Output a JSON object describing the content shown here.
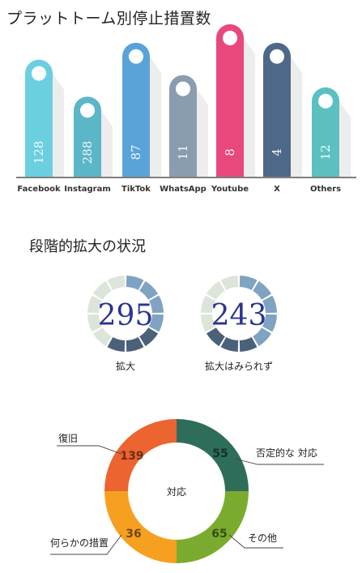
{
  "titles": {
    "chart1": "プラットトーム別停止措置数",
    "chart2": "段階的拡大の状況"
  },
  "colors": {
    "axis": "#555555",
    "bars": [
      "#6ccfe0",
      "#5bb6c8",
      "#5aa3d9",
      "#8a9db0",
      "#e8487c",
      "#4e6888",
      "#5cc0c0"
    ],
    "gauge_light": "#dde5da",
    "gauge_mid": "#7fa3c2",
    "gauge_dark": "#4b6079",
    "gauge_text": "#2a3590",
    "donut": [
      "#2f6d5b",
      "#7bab2e",
      "#f6a020",
      "#ec6430"
    ]
  },
  "chart_data": [
    {
      "type": "bar",
      "title": "プラットトーム別停止措置数",
      "categories": [
        "Facebook",
        "Instagram",
        "TikTok",
        "WhatsApp",
        "Youtube",
        "X",
        "Others"
      ],
      "values": [
        128,
        288,
        87,
        11,
        8,
        4,
        12
      ],
      "bar_heights_relative": [
        0.76,
        0.52,
        0.87,
        0.66,
        0.99,
        0.87,
        0.58
      ]
    },
    {
      "type": "gauge",
      "title": "段階的拡大の状況",
      "gauges": [
        {
          "label": "拡大",
          "value": "295",
          "segments": [
            "mid",
            "mid",
            "mid",
            "mid",
            "dark",
            "dark",
            "dark",
            "light",
            "light",
            "light",
            "light",
            "light"
          ]
        },
        {
          "label": "拡大はみられず",
          "value": "243",
          "segments": [
            "mid",
            "mid",
            "mid",
            "mid",
            "mid",
            "dark",
            "dark",
            "dark",
            "light",
            "light",
            "light",
            "light"
          ]
        }
      ]
    },
    {
      "type": "pie",
      "center_label": "対応",
      "slices": [
        {
          "label": "否定的な 対応",
          "value": 55
        },
        {
          "label": "その他",
          "value": 65
        },
        {
          "label": "何らかの措置",
          "value": 36
        },
        {
          "label": "復旧",
          "value": 139
        }
      ]
    }
  ]
}
